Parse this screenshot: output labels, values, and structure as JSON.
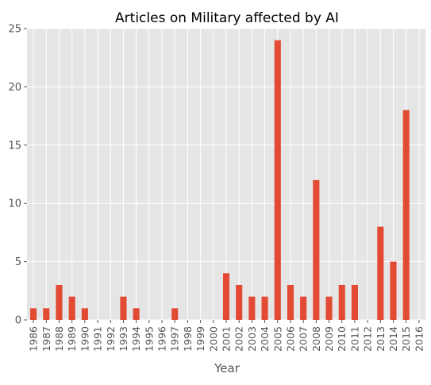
{
  "chart_data": {
    "type": "bar",
    "title": "Articles on Military affected by AI",
    "xlabel": "Year",
    "ylabel": "",
    "ylim": [
      0,
      25
    ],
    "yticks": [
      0,
      5,
      10,
      15,
      20,
      25
    ],
    "grid": true,
    "legend": "none",
    "bar_color": "#E24A33",
    "background_color": "#E5E5E5",
    "categories": [
      "1986",
      "1987",
      "1988",
      "1989",
      "1990",
      "1991",
      "1992",
      "1993",
      "1994",
      "1995",
      "1996",
      "1997",
      "1998",
      "1999",
      "2000",
      "2001",
      "2002",
      "2003",
      "2004",
      "2005",
      "2006",
      "2007",
      "2008",
      "2009",
      "2010",
      "2011",
      "2012",
      "2013",
      "2014",
      "2015",
      "2016"
    ],
    "values": [
      1,
      1,
      3,
      2,
      1,
      0,
      0,
      2,
      1,
      0,
      0,
      1,
      0,
      0,
      0,
      4,
      3,
      2,
      2,
      24,
      3,
      2,
      12,
      2,
      3,
      3,
      0,
      8,
      5,
      18,
      0
    ]
  }
}
